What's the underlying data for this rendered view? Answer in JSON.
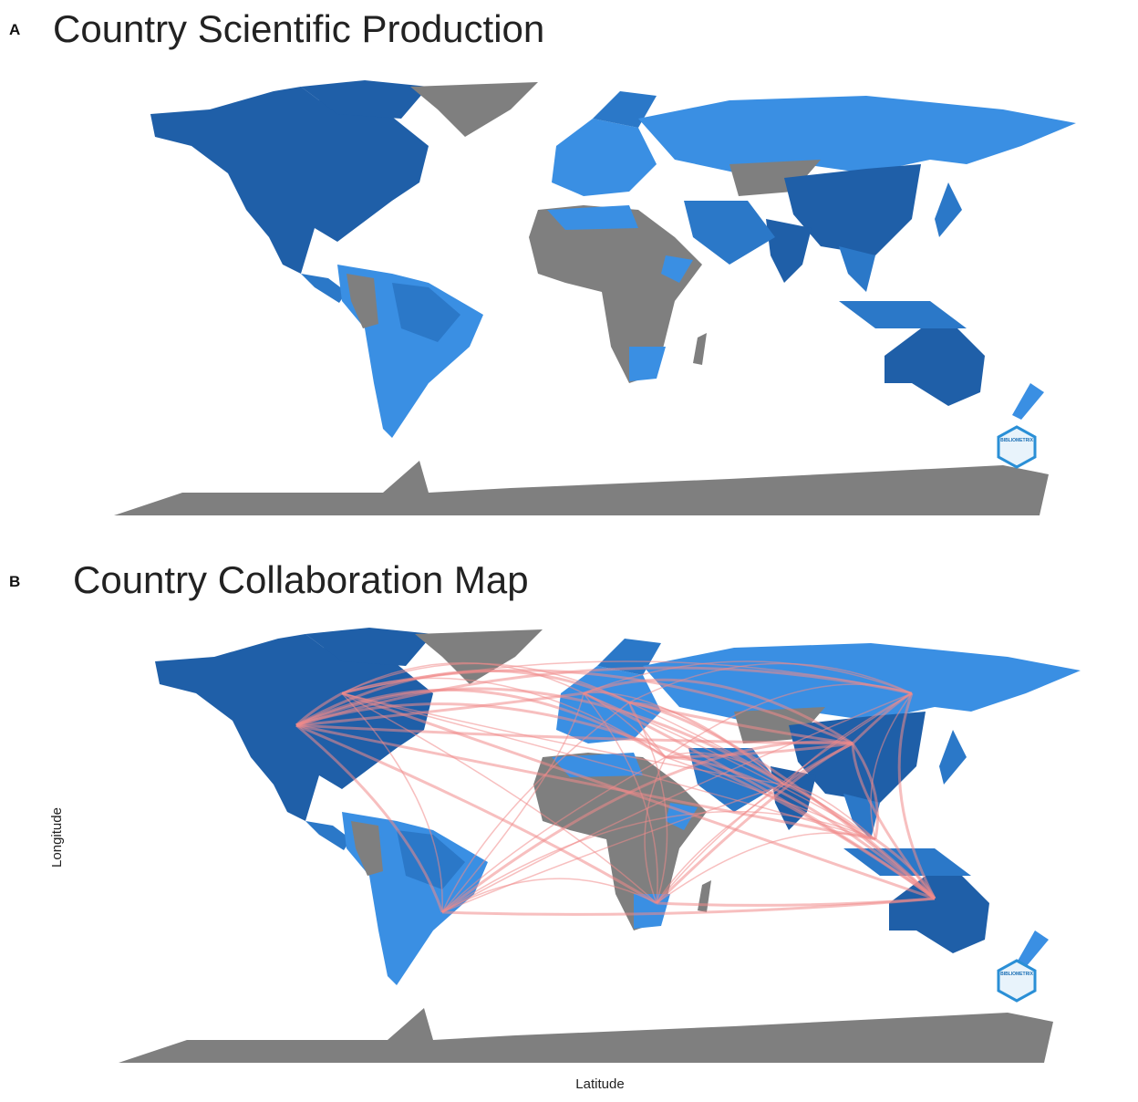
{
  "panels": [
    {
      "label": "A",
      "title": "Country Scientific Production",
      "logo": "BIBLIOMETRIX"
    },
    {
      "label": "B",
      "title": "Country Collaboration Map",
      "logo": "BIBLIOMETRIX",
      "y_axis_label": "Longitude",
      "x_axis_label": "Latitude"
    }
  ]
}
